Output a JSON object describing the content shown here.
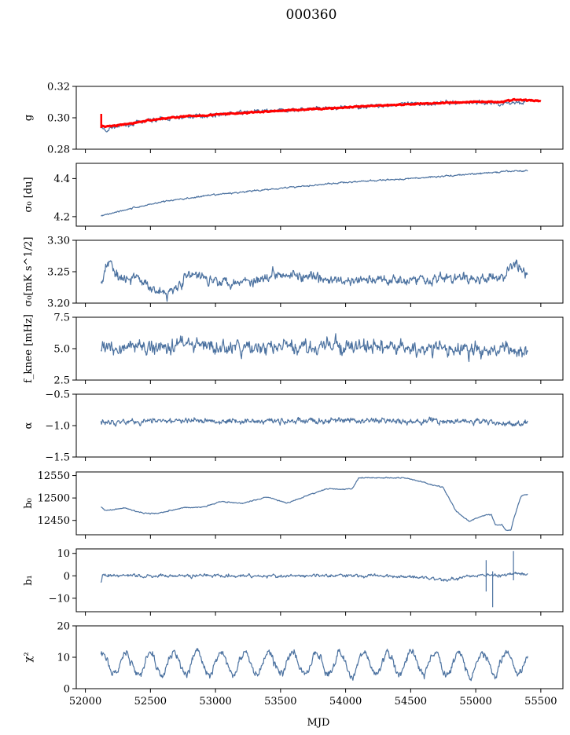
{
  "figure": {
    "title": "000360",
    "xlabel": "MJD",
    "line_color": "#4c72a0",
    "fit_color": "#ff0000"
  },
  "chart_data": {
    "type": "line",
    "shared_x": {
      "label": "MJD",
      "range": [
        51930,
        55670
      ],
      "ticks": [
        52000,
        52500,
        53000,
        53500,
        54000,
        54500,
        55000,
        55500
      ],
      "data_range": [
        52120,
        55400
      ]
    },
    "panels": [
      {
        "ylabel": "g",
        "ylim": [
          0.28,
          0.32
        ],
        "yticks": [
          0.28,
          0.3,
          0.32
        ],
        "ytick_labels": [
          "0.28",
          "0.30",
          "0.32"
        ],
        "series": [
          {
            "x": [
              52120,
              52160,
              52200,
              52300,
              52500,
              52700,
              53000,
              53300,
              53600,
              54000,
              54300,
              54600,
              55000,
              55200,
              55400
            ],
            "values": [
              0.294,
              0.291,
              0.294,
              0.295,
              0.2985,
              0.3,
              0.302,
              0.304,
              0.305,
              0.3065,
              0.308,
              0.309,
              0.31,
              0.309,
              0.3105
            ],
            "noise": 0.0012,
            "style": "line"
          },
          {
            "x": [
              52120,
              52200,
              52300,
              52500,
              52700,
              53000,
              53300,
              53600,
              54000,
              54300,
              54600,
              55000,
              55200,
              55300,
              55500
            ],
            "values": [
              0.2945,
              0.2947,
              0.2957,
              0.2985,
              0.3005,
              0.302,
              0.3035,
              0.305,
              0.3065,
              0.308,
              0.309,
              0.3102,
              0.3102,
              0.3115,
              0.3108
            ],
            "noise": 0.0004,
            "style": "fit",
            "spike": {
              "x": 52122,
              "values": [
                0.2935,
                0.3025
              ]
            }
          }
        ]
      },
      {
        "ylabel": "σ₀ [du]",
        "ylim": [
          4.15,
          4.48
        ],
        "yticks": [
          4.2,
          4.4
        ],
        "ytick_labels": [
          "4.2",
          "4.4"
        ],
        "series": [
          {
            "x": [
              52120,
              52300,
              52600,
              53000,
              53500,
              54000,
              54500,
              55000,
              55300,
              55400
            ],
            "values": [
              4.205,
              4.235,
              4.28,
              4.315,
              4.35,
              4.38,
              4.4,
              4.425,
              4.44,
              4.44
            ],
            "noise": 0.004,
            "style": "line"
          }
        ]
      },
      {
        "ylabel": "σ₀[mK s^1/2]",
        "ylim": [
          3.2,
          3.3
        ],
        "yticks": [
          3.2,
          3.25,
          3.3
        ],
        "ytick_labels": [
          "3.20",
          "3.25",
          "3.30"
        ],
        "series": [
          {
            "x": [
              52120,
              52180,
              52250,
              52400,
              52620,
              52800,
              53100,
              53300,
              53500,
              53700,
              54000,
              54300,
              54500,
              54800,
              55000,
              55200,
              55300,
              55400
            ],
            "values": [
              3.232,
              3.27,
              3.242,
              3.238,
              3.213,
              3.245,
              3.234,
              3.236,
              3.25,
              3.24,
              3.234,
              3.238,
              3.238,
              3.24,
              3.238,
              3.24,
              3.265,
              3.242
            ],
            "noise": 0.008,
            "style": "line"
          }
        ]
      },
      {
        "ylabel": "f_knee [mHz]",
        "ylim": [
          2.5,
          7.5
        ],
        "yticks": [
          2.5,
          5.0,
          7.5
        ],
        "ytick_labels": [
          "2.5",
          "5.0",
          "7.5"
        ],
        "series": [
          {
            "x": [
              52120,
              52500,
              52800,
              53000,
              53500,
              54000,
              54500,
              55000,
              55400
            ],
            "values": [
              5.1,
              5.1,
              5.5,
              5.0,
              5.1,
              5.2,
              5.0,
              4.9,
              4.8
            ],
            "noise": 0.55,
            "style": "line"
          }
        ]
      },
      {
        "ylabel": "α",
        "ylim": [
          -1.5,
          -0.5
        ],
        "yticks": [
          -1.5,
          -1.0,
          -0.5
        ],
        "ytick_labels": [
          "−1.5",
          "−1.0",
          "−0.5"
        ],
        "series": [
          {
            "x": [
              52120,
              52500,
              53000,
              53500,
              54000,
              54500,
              55000,
              55300,
              55400
            ],
            "values": [
              -0.93,
              -0.93,
              -0.92,
              -0.93,
              -0.92,
              -0.93,
              -0.93,
              -0.98,
              -0.96
            ],
            "noise": 0.045,
            "style": "line"
          }
        ]
      },
      {
        "ylabel": "b₀",
        "ylim": [
          12418,
          12558
        ],
        "yticks": [
          12450,
          12500,
          12550
        ],
        "ytick_labels": [
          "12450",
          "12500",
          "12550"
        ],
        "series": [
          {
            "x": [
              52120,
              52150,
              52300,
              52450,
              52550,
              52750,
              52900,
              53050,
              53200,
              53400,
              53550,
              53700,
              53850,
              53950,
              54050,
              54100,
              54250,
              54450,
              54600,
              54750,
              54850,
              54950,
              55080,
              55120,
              55150,
              55200,
              55230,
              55270,
              55300,
              55350,
              55400
            ],
            "values": [
              12480,
              12472,
              12478,
              12466,
              12466,
              12478,
              12480,
              12492,
              12488,
              12502,
              12488,
              12505,
              12520,
              12520,
              12520,
              12545,
              12545,
              12545,
              12535,
              12523,
              12470,
              12448,
              12463,
              12463,
              12440,
              12440,
              12428,
              12428,
              12462,
              12505,
              12508
            ],
            "noise": 1.2,
            "style": "line"
          }
        ]
      },
      {
        "ylabel": "b₁",
        "ylim": [
          -16,
          12
        ],
        "yticks": [
          -10,
          0,
          10
        ],
        "ytick_labels": [
          "−10",
          "0",
          "10"
        ],
        "series": [
          {
            "x": [
              52120,
              52130,
              52200,
              52500,
              53000,
              53500,
              54000,
              54500,
              54800,
              55000,
              55100,
              55200,
              55300,
              55400
            ],
            "values": [
              -3,
              0.2,
              0.0,
              0.0,
              0.2,
              -0.2,
              0.2,
              -0.3,
              -1.8,
              0.3,
              0.3,
              0.0,
              1.5,
              0.3
            ],
            "noise": 0.7,
            "style": "line",
            "spikes": [
              {
                "x": 55080,
                "values": [
                  -7,
                  7
                ]
              },
              {
                "x": 55130,
                "values": [
                  -14,
                  2
                ]
              },
              {
                "x": 55290,
                "values": [
                  -2,
                  11
                ]
              }
            ]
          }
        ]
      },
      {
        "ylabel": "χ²",
        "ylim": [
          0,
          20
        ],
        "yticks": [
          0,
          10,
          20
        ],
        "ytick_labels": [
          "0",
          "10",
          "20"
        ],
        "series": [
          {
            "x": [
              52120,
              55400
            ],
            "values": [
              8.0,
              8.0
            ],
            "noise": 1.2,
            "style": "line",
            "seasonal": {
              "amplitude": 3.5,
              "period": 182.6
            }
          }
        ]
      }
    ]
  }
}
